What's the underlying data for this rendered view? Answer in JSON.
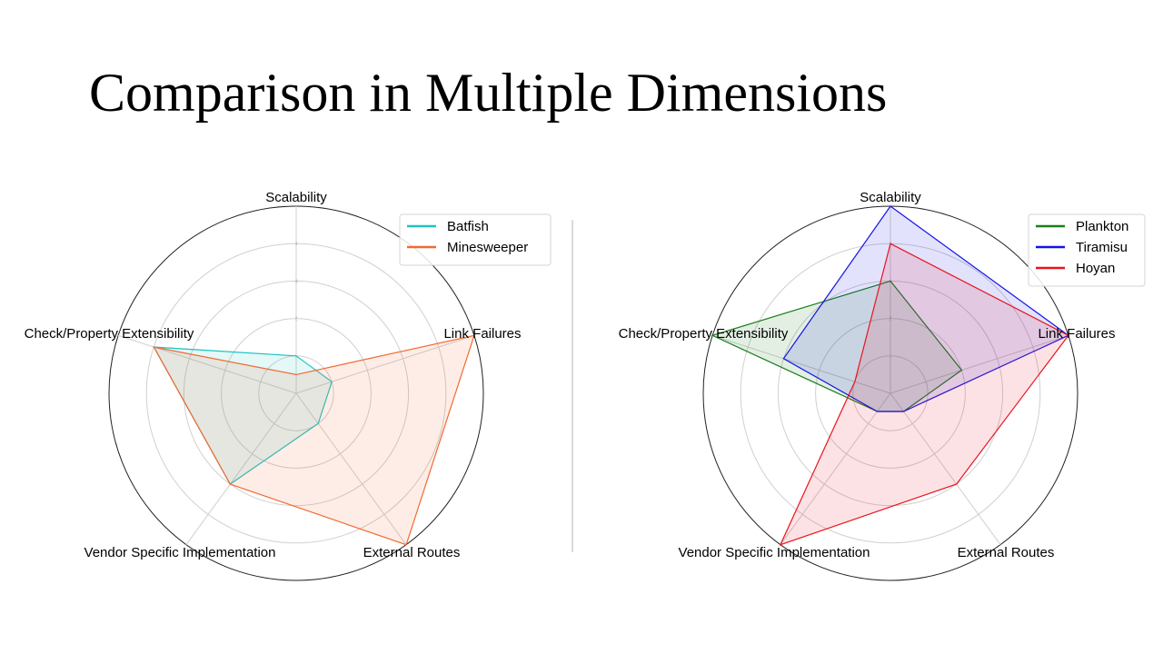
{
  "slide": {
    "title": "Comparison in Multiple Dimensions"
  },
  "chart_data": [
    {
      "type": "radar",
      "axes": [
        "Scalability",
        "Link Failures",
        "External Routes",
        "Vendor Specific Implementation",
        "Check/Property Extensibility"
      ],
      "rlim": [
        0,
        5
      ],
      "rticks": [
        "1",
        "2",
        "3",
        "4"
      ],
      "legend_position": "top-right",
      "series": [
        {
          "name": "Batfish",
          "color": "#1ec3c3",
          "values": [
            1,
            1,
            1,
            3,
            4
          ]
        },
        {
          "name": "Minesweeper",
          "color": "#f26a32",
          "values": [
            0.5,
            5,
            5,
            3,
            4
          ]
        }
      ]
    },
    {
      "type": "radar",
      "axes": [
        "Scalability",
        "Link Failures",
        "External Routes",
        "Vendor Specific Implementation",
        "Check/Property Extensibility"
      ],
      "rlim": [
        0,
        5
      ],
      "rticks": [
        "1",
        "2",
        "3",
        "4"
      ],
      "legend_position": "top-right",
      "series": [
        {
          "name": "Plankton",
          "color": "#1a7f1a",
          "values": [
            3,
            2,
            0.6,
            0.6,
            5
          ]
        },
        {
          "name": "Tiramisu",
          "color": "#1414e6",
          "values": [
            5,
            5,
            0.6,
            0.6,
            3
          ]
        },
        {
          "name": "Hoyan",
          "color": "#e8141e",
          "values": [
            4,
            5,
            3,
            5,
            1
          ]
        }
      ]
    }
  ]
}
